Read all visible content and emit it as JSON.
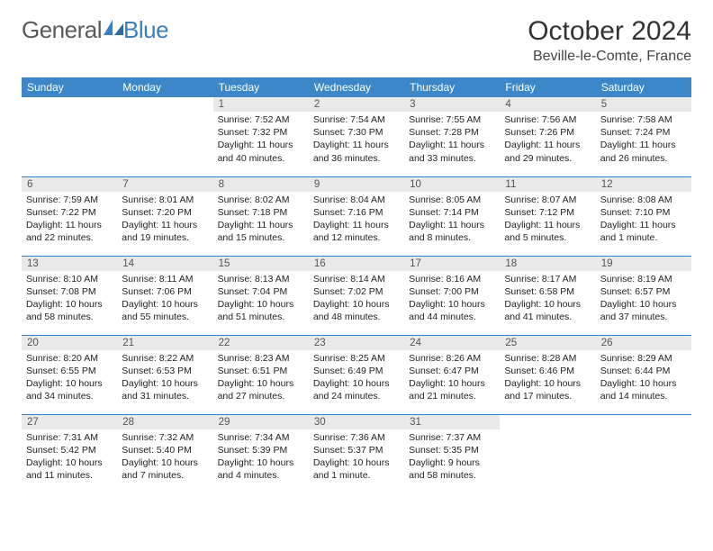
{
  "logo": {
    "text1": "General",
    "text2": "Blue"
  },
  "title": "October 2024",
  "location": "Beville-le-Comte, France",
  "colors": {
    "header_bg": "#3b87c8",
    "header_text": "#ffffff",
    "daynum_bg": "#e9e9e9",
    "border": "#3b7fbf",
    "logo_gray": "#5a5a5a",
    "logo_blue": "#3b7fbf"
  },
  "weekdays": [
    "Sunday",
    "Monday",
    "Tuesday",
    "Wednesday",
    "Thursday",
    "Friday",
    "Saturday"
  ],
  "weeks": [
    [
      null,
      null,
      {
        "n": "1",
        "sr": "7:52 AM",
        "ss": "7:32 PM",
        "dl": "11 hours and 40 minutes."
      },
      {
        "n": "2",
        "sr": "7:54 AM",
        "ss": "7:30 PM",
        "dl": "11 hours and 36 minutes."
      },
      {
        "n": "3",
        "sr": "7:55 AM",
        "ss": "7:28 PM",
        "dl": "11 hours and 33 minutes."
      },
      {
        "n": "4",
        "sr": "7:56 AM",
        "ss": "7:26 PM",
        "dl": "11 hours and 29 minutes."
      },
      {
        "n": "5",
        "sr": "7:58 AM",
        "ss": "7:24 PM",
        "dl": "11 hours and 26 minutes."
      }
    ],
    [
      {
        "n": "6",
        "sr": "7:59 AM",
        "ss": "7:22 PM",
        "dl": "11 hours and 22 minutes."
      },
      {
        "n": "7",
        "sr": "8:01 AM",
        "ss": "7:20 PM",
        "dl": "11 hours and 19 minutes."
      },
      {
        "n": "8",
        "sr": "8:02 AM",
        "ss": "7:18 PM",
        "dl": "11 hours and 15 minutes."
      },
      {
        "n": "9",
        "sr": "8:04 AM",
        "ss": "7:16 PM",
        "dl": "11 hours and 12 minutes."
      },
      {
        "n": "10",
        "sr": "8:05 AM",
        "ss": "7:14 PM",
        "dl": "11 hours and 8 minutes."
      },
      {
        "n": "11",
        "sr": "8:07 AM",
        "ss": "7:12 PM",
        "dl": "11 hours and 5 minutes."
      },
      {
        "n": "12",
        "sr": "8:08 AM",
        "ss": "7:10 PM",
        "dl": "11 hours and 1 minute."
      }
    ],
    [
      {
        "n": "13",
        "sr": "8:10 AM",
        "ss": "7:08 PM",
        "dl": "10 hours and 58 minutes."
      },
      {
        "n": "14",
        "sr": "8:11 AM",
        "ss": "7:06 PM",
        "dl": "10 hours and 55 minutes."
      },
      {
        "n": "15",
        "sr": "8:13 AM",
        "ss": "7:04 PM",
        "dl": "10 hours and 51 minutes."
      },
      {
        "n": "16",
        "sr": "8:14 AM",
        "ss": "7:02 PM",
        "dl": "10 hours and 48 minutes."
      },
      {
        "n": "17",
        "sr": "8:16 AM",
        "ss": "7:00 PM",
        "dl": "10 hours and 44 minutes."
      },
      {
        "n": "18",
        "sr": "8:17 AM",
        "ss": "6:58 PM",
        "dl": "10 hours and 41 minutes."
      },
      {
        "n": "19",
        "sr": "8:19 AM",
        "ss": "6:57 PM",
        "dl": "10 hours and 37 minutes."
      }
    ],
    [
      {
        "n": "20",
        "sr": "8:20 AM",
        "ss": "6:55 PM",
        "dl": "10 hours and 34 minutes."
      },
      {
        "n": "21",
        "sr": "8:22 AM",
        "ss": "6:53 PM",
        "dl": "10 hours and 31 minutes."
      },
      {
        "n": "22",
        "sr": "8:23 AM",
        "ss": "6:51 PM",
        "dl": "10 hours and 27 minutes."
      },
      {
        "n": "23",
        "sr": "8:25 AM",
        "ss": "6:49 PM",
        "dl": "10 hours and 24 minutes."
      },
      {
        "n": "24",
        "sr": "8:26 AM",
        "ss": "6:47 PM",
        "dl": "10 hours and 21 minutes."
      },
      {
        "n": "25",
        "sr": "8:28 AM",
        "ss": "6:46 PM",
        "dl": "10 hours and 17 minutes."
      },
      {
        "n": "26",
        "sr": "8:29 AM",
        "ss": "6:44 PM",
        "dl": "10 hours and 14 minutes."
      }
    ],
    [
      {
        "n": "27",
        "sr": "7:31 AM",
        "ss": "5:42 PM",
        "dl": "10 hours and 11 minutes."
      },
      {
        "n": "28",
        "sr": "7:32 AM",
        "ss": "5:40 PM",
        "dl": "10 hours and 7 minutes."
      },
      {
        "n": "29",
        "sr": "7:34 AM",
        "ss": "5:39 PM",
        "dl": "10 hours and 4 minutes."
      },
      {
        "n": "30",
        "sr": "7:36 AM",
        "ss": "5:37 PM",
        "dl": "10 hours and 1 minute."
      },
      {
        "n": "31",
        "sr": "7:37 AM",
        "ss": "5:35 PM",
        "dl": "9 hours and 58 minutes."
      },
      null,
      null
    ]
  ],
  "labels": {
    "sunrise": "Sunrise:",
    "sunset": "Sunset:",
    "daylight": "Daylight:"
  }
}
